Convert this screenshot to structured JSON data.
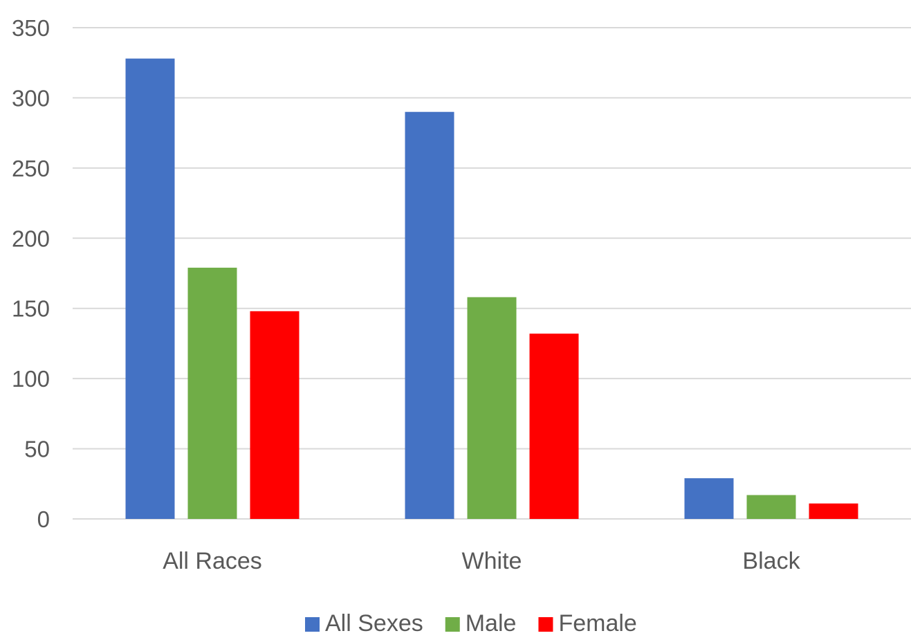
{
  "chart_data": {
    "type": "bar",
    "categories": [
      "All Races",
      "White",
      "Black"
    ],
    "series": [
      {
        "name": "All Sexes",
        "values": [
          328,
          290,
          29
        ],
        "color": "#4472C4"
      },
      {
        "name": "Male",
        "values": [
          179,
          158,
          17
        ],
        "color": "#70AD47"
      },
      {
        "name": "Female",
        "values": [
          148,
          132,
          11
        ],
        "color": "#FF0000"
      }
    ],
    "ylim": [
      0,
      350
    ],
    "yticks": [
      0,
      50,
      100,
      150,
      200,
      250,
      300,
      350
    ],
    "title": "",
    "xlabel": "",
    "ylabel": "",
    "grid": true,
    "legend_position": "bottom-center"
  }
}
